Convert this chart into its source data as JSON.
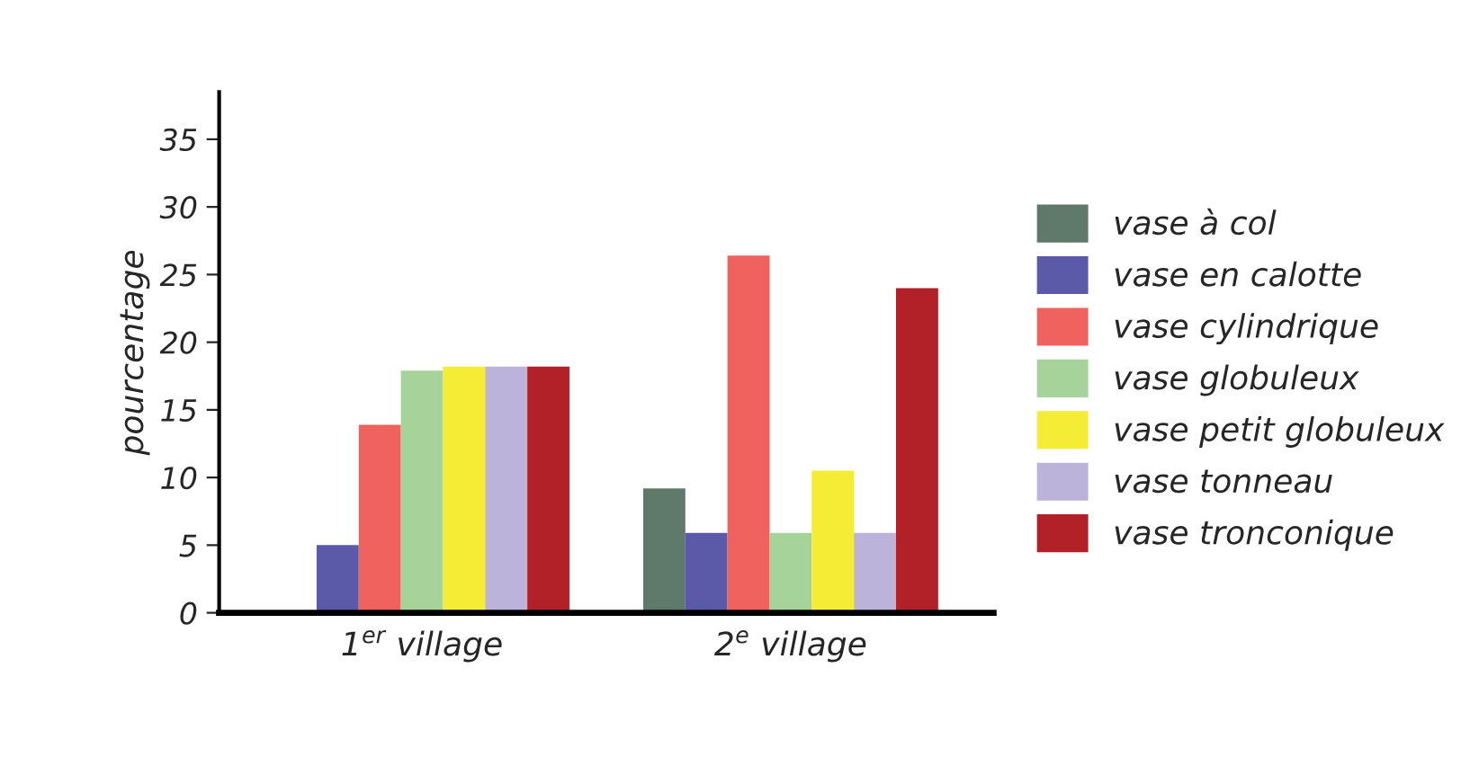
{
  "chart_data": {
    "type": "bar",
    "ylabel": "pourcentage",
    "categories": [
      "1$^{er}$ village",
      "2$^{e}$ village"
    ],
    "series": [
      {
        "name": "vase à col",
        "color": "#5f7a6a",
        "values": [
          0,
          9.2
        ]
      },
      {
        "name": "vase en calotte",
        "color": "#5b5aa8",
        "values": [
          5,
          5.9
        ]
      },
      {
        "name": "vase cylindrique",
        "color": "#f0625e",
        "values": [
          13.9,
          26.4
        ]
      },
      {
        "name": "vase globuleux",
        "color": "#a6d39a",
        "values": [
          17.9,
          5.9
        ]
      },
      {
        "name": "vase petit globuleux",
        "color": "#f5ec35",
        "values": [
          18.2,
          10.5
        ]
      },
      {
        "name": "vase tonneau",
        "color": "#bcb3da",
        "values": [
          18.2,
          5.9
        ]
      },
      {
        "name": "vase tronconique",
        "color": "#b22028",
        "values": [
          18.2,
          24.0
        ]
      }
    ],
    "ylim": [
      0,
      38.5
    ],
    "yticks": [
      0,
      5,
      10,
      15,
      20,
      25,
      30,
      35
    ],
    "grid": false,
    "legend": "right"
  }
}
